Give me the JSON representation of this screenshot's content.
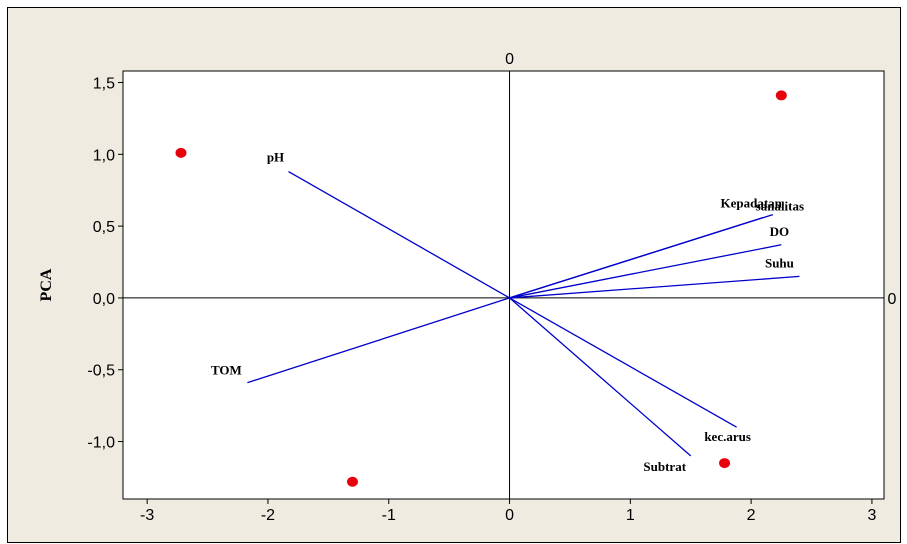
{
  "chart_data": {
    "type": "scatter",
    "title": "",
    "xlabel": "",
    "ylabel": "PCA",
    "xlim": [
      -3.2,
      3.1
    ],
    "ylim": [
      -1.4,
      1.58
    ],
    "x_ticks": [
      "-3",
      "-2",
      "-1",
      "0",
      "1",
      "2",
      "3"
    ],
    "y_ticks": [
      "-1,0",
      "-0,5",
      "0,0",
      "0,5",
      "1,0",
      "1,5"
    ],
    "x_tick_values": [
      -3,
      -2,
      -1,
      0,
      1,
      2,
      3
    ],
    "y_tick_values": [
      -1.0,
      -0.5,
      0.0,
      0.5,
      1.0,
      1.5
    ],
    "reference_line_labels": {
      "vertical": "0",
      "horizontal": "0"
    },
    "grid": false,
    "point_color": "#e8000b",
    "vector_color": "#0000cc",
    "points": [
      {
        "x": -2.72,
        "y": 1.01
      },
      {
        "x": 2.25,
        "y": 1.41
      },
      {
        "x": -1.3,
        "y": -1.28
      },
      {
        "x": 1.78,
        "y": -1.15
      }
    ],
    "vectors": [
      {
        "label": "pH",
        "x": -1.83,
        "y": 0.88
      },
      {
        "label": "Kepadatan",
        "x": 2.1,
        "y": 0.56
      },
      {
        "label": "sanalitas",
        "x": 2.18,
        "y": 0.58
      },
      {
        "label": "DO",
        "x": 2.25,
        "y": 0.37
      },
      {
        "label": "Suhu",
        "x": 2.4,
        "y": 0.15
      },
      {
        "label": "TOM",
        "x": -2.17,
        "y": -0.59
      },
      {
        "label": "kec.arus",
        "x": 1.88,
        "y": -0.9
      },
      {
        "label": "Subtrat",
        "x": 1.5,
        "y": -1.1
      }
    ]
  }
}
